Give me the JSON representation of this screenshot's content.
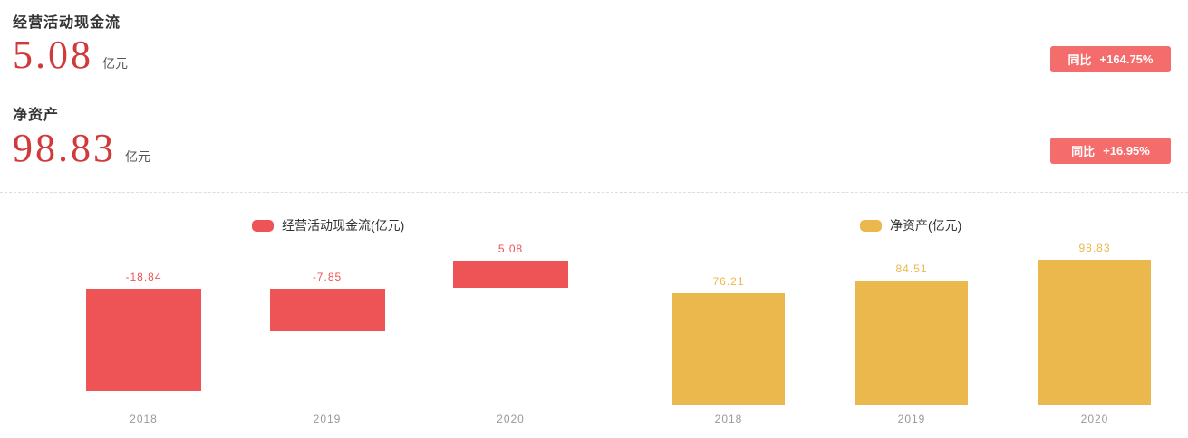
{
  "stats": [
    {
      "title": "经营活动现金流",
      "value": "5.08",
      "unit": "亿元",
      "yoy_label": "同比",
      "yoy_value": "+164.75%"
    },
    {
      "title": "净资产",
      "value": "98.83",
      "unit": "亿元",
      "yoy_label": "同比",
      "yoy_value": "+16.95%"
    }
  ],
  "colors": {
    "accent_red": "#d03a3a",
    "badge_bg": "#f56c6c",
    "badge_text": "#ffffff",
    "bar_red": "#ee5355",
    "bar_gold": "#eab84c",
    "title_text": "#333333",
    "unit_text": "#555555",
    "axis_text": "#999999",
    "divider": "#dddddd"
  },
  "chart_data": [
    {
      "type": "bar",
      "legend": "经营活动现金流(亿元)",
      "categories": [
        "2018",
        "2019",
        "2020"
      ],
      "values": [
        -18.84,
        -7.85,
        5.08
      ],
      "labels": [
        "-18.84",
        "-7.85",
        "5.08"
      ],
      "unit": "亿元",
      "color": "#ee5355",
      "grid": false,
      "legend_position": "top",
      "ylim": [
        -20,
        10
      ]
    },
    {
      "type": "bar",
      "legend": "净资产(亿元)",
      "categories": [
        "2018",
        "2019",
        "2020"
      ],
      "values": [
        76.21,
        84.51,
        98.83
      ],
      "labels": [
        "76.21",
        "84.51",
        "98.83"
      ],
      "unit": "亿元",
      "color": "#eab84c",
      "grid": false,
      "legend_position": "top",
      "ylim": [
        0,
        110
      ]
    }
  ]
}
